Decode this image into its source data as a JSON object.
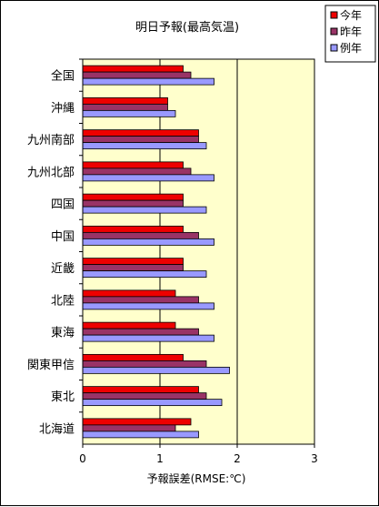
{
  "chart_data": {
    "type": "bar",
    "orientation": "horizontal",
    "title": "明日予報(最高気温)",
    "xlabel": "予報誤差(RMSE:℃)",
    "ylabel": "",
    "xlim": [
      0,
      3
    ],
    "x_ticks": [
      "0",
      "1",
      "2",
      "3"
    ],
    "categories": [
      "全国",
      "沖縄",
      "九州南部",
      "九州北部",
      "四国",
      "中国",
      "近畿",
      "北陸",
      "東海",
      "関東甲信",
      "東北",
      "北海道"
    ],
    "series": [
      {
        "name": "今年",
        "color": "#ee0000",
        "values": [
          1.3,
          1.1,
          1.5,
          1.3,
          1.3,
          1.3,
          1.3,
          1.2,
          1.2,
          1.3,
          1.5,
          1.4
        ]
      },
      {
        "name": "昨年",
        "color": "#993366",
        "values": [
          1.4,
          1.1,
          1.5,
          1.4,
          1.3,
          1.5,
          1.3,
          1.5,
          1.5,
          1.6,
          1.6,
          1.2
        ]
      },
      {
        "name": "例年",
        "color": "#9999ff",
        "values": [
          1.7,
          1.2,
          1.6,
          1.7,
          1.6,
          1.7,
          1.6,
          1.7,
          1.7,
          1.9,
          1.8,
          1.5
        ]
      }
    ],
    "plot_background": "#ffffcc",
    "grid": "vertical lines at major ticks",
    "legend_position": "top-right"
  }
}
